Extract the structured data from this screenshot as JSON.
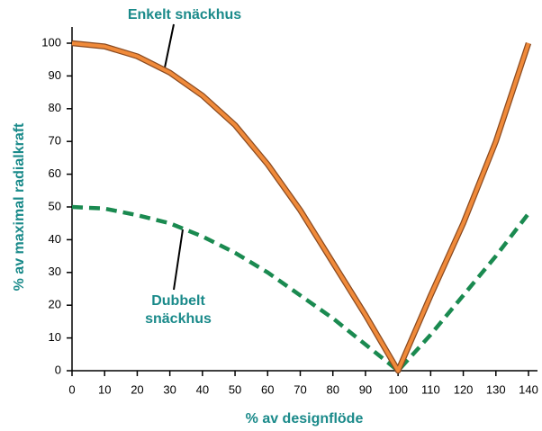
{
  "chart_data": {
    "type": "line",
    "x_label": "% av designflöde",
    "y_label": "% av maximal radialkraft",
    "x": [
      0,
      10,
      20,
      30,
      40,
      50,
      60,
      70,
      80,
      90,
      100,
      110,
      120,
      130,
      140
    ],
    "series": [
      {
        "name": "Enkelt snäckhus",
        "color": "#f08a3a",
        "dashed": false,
        "values": [
          100,
          99,
          96,
          91,
          84,
          75,
          63,
          49,
          33,
          17,
          0,
          23,
          45,
          70,
          100
        ]
      },
      {
        "name": "Dubbelt snäckhus",
        "color": "#1a8a50",
        "dashed": true,
        "values": [
          50,
          49.5,
          47.5,
          45,
          41,
          36,
          30,
          23,
          16,
          8,
          0,
          11,
          23,
          35,
          48
        ]
      }
    ],
    "xlim": [
      0,
      140
    ],
    "ylim": [
      0,
      100
    ],
    "xticks": [
      0,
      10,
      20,
      30,
      40,
      50,
      60,
      70,
      80,
      90,
      100,
      110,
      120,
      130,
      140
    ],
    "yticks": [
      0,
      10,
      20,
      30,
      40,
      50,
      60,
      70,
      80,
      90,
      100
    ]
  }
}
